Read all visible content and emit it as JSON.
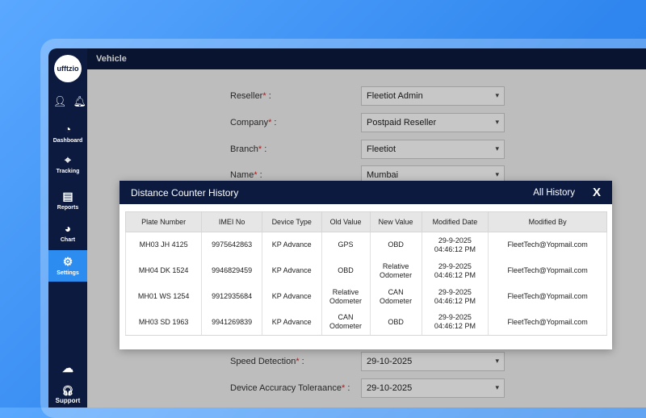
{
  "app": {
    "logo": "ufftzio",
    "title": "Vehicle"
  },
  "sidebar": {
    "items": [
      {
        "label": "Dashboard",
        "icon": "speedometer-icon"
      },
      {
        "label": "Tracking",
        "icon": "location-pin-icon"
      },
      {
        "label": "Reports",
        "icon": "report-icon"
      },
      {
        "label": "Chart",
        "icon": "pie-chart-icon"
      },
      {
        "label": "Settings",
        "icon": "gear-icon",
        "active": true
      },
      {
        "label": "",
        "icon": "cloud-download-icon"
      },
      {
        "label": "Support",
        "icon": "headset-icon"
      }
    ]
  },
  "form": {
    "fields": [
      {
        "label": "Reseller",
        "value": "Fleetiot Admin"
      },
      {
        "label": "Company",
        "value": "Postpaid Reseller"
      },
      {
        "label": "Branch",
        "value": "Fleetiot"
      },
      {
        "label": "Name",
        "value": "Mumbai"
      },
      {
        "label": "Speed Detection",
        "value": "29-10-2025"
      },
      {
        "label": "Device Accuracy Toleraance",
        "value": "29-10-2025"
      }
    ]
  },
  "modal": {
    "title": "Distance Counter History",
    "all_history": "All History",
    "close": "X",
    "columns": [
      "Plate Number",
      "IMEI No",
      "Device Type",
      "Old Value",
      "New Value",
      "Modified Date",
      "Modified By"
    ],
    "rows": [
      [
        "MH03 JH 4125",
        "9975642863",
        "KP Advance",
        "GPS",
        "OBD",
        "29-9-2025\n04:46:12 PM",
        "FleetTech@Yopmail.com"
      ],
      [
        "MH04 DK 1524",
        "9946829459",
        "KP Advance",
        "OBD",
        "Relative\nOdometer",
        "29-9-2025\n04:46:12 PM",
        "FleetTech@Yopmail.com"
      ],
      [
        "MH01 WS 1254",
        "9912935684",
        "KP Advance",
        "Relative\nOdometer",
        "CAN\nOdometer",
        "29-9-2025\n04:46:12 PM",
        "FleetTech@Yopmail.com"
      ],
      [
        "MH03 SD 1963",
        "9941269839",
        "KP Advance",
        "CAN\nOdometer",
        "OBD",
        "29-9-2025\n04:46:12 PM",
        "FleetTech@Yopmail.com"
      ]
    ]
  }
}
